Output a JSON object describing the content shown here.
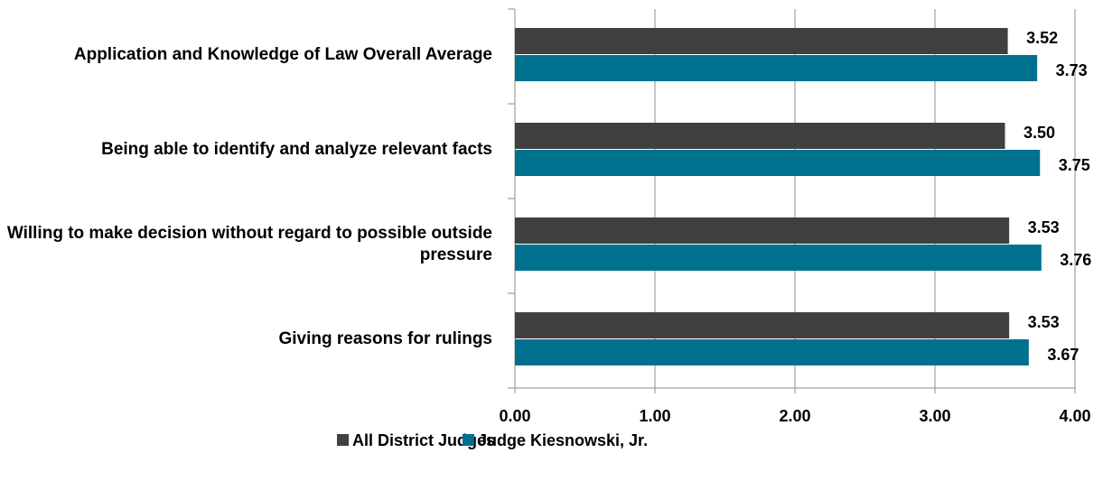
{
  "chart_data": {
    "type": "bar",
    "orientation": "horizontal",
    "categories": [
      "Application and Knowledge of Law Overall Average",
      "Being able to identify and analyze relevant facts",
      "Willing to make decision without regard to possible outside pressure",
      "Giving reasons for rulings"
    ],
    "series": [
      {
        "name": "All District Judges",
        "color": "#404040",
        "values": [
          3.52,
          3.5,
          3.53,
          3.53
        ],
        "value_labels": [
          "3.52",
          "3.50",
          "3.53",
          "3.53"
        ]
      },
      {
        "name": "Judge Kiesnowski, Jr.",
        "color": "#00708f",
        "values": [
          3.73,
          3.75,
          3.76,
          3.67
        ],
        "value_labels": [
          "3.73",
          "3.75",
          "3.76",
          "3.67"
        ]
      }
    ],
    "xlim": [
      0,
      4
    ],
    "xticks": [
      {
        "value": 0,
        "label": "0.00"
      },
      {
        "value": 1,
        "label": "1.00"
      },
      {
        "value": 2,
        "label": "2.00"
      },
      {
        "value": 3,
        "label": "3.00"
      },
      {
        "value": 4,
        "label": "4.00"
      }
    ],
    "grid": true,
    "legend": "bottom"
  }
}
